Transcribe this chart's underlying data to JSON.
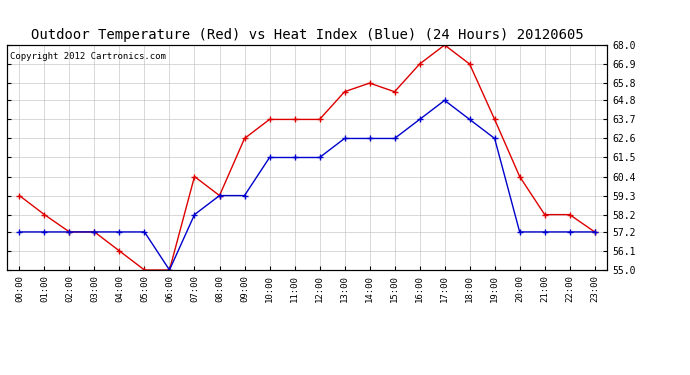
{
  "title": "Outdoor Temperature (Red) vs Heat Index (Blue) (24 Hours) 20120605",
  "copyright": "Copyright 2012 Cartronics.com",
  "x_labels": [
    "00:00",
    "01:00",
    "02:00",
    "03:00",
    "04:00",
    "05:00",
    "06:00",
    "07:00",
    "08:00",
    "09:00",
    "10:00",
    "11:00",
    "12:00",
    "13:00",
    "14:00",
    "15:00",
    "16:00",
    "17:00",
    "18:00",
    "19:00",
    "20:00",
    "21:00",
    "22:00",
    "23:00"
  ],
  "red_temp": [
    59.3,
    58.2,
    57.2,
    57.2,
    56.1,
    55.0,
    55.0,
    60.4,
    59.3,
    62.6,
    63.7,
    63.7,
    63.7,
    65.3,
    65.8,
    65.3,
    66.9,
    68.0,
    66.9,
    63.7,
    60.4,
    58.2,
    58.2,
    57.2
  ],
  "blue_heat": [
    57.2,
    57.2,
    57.2,
    57.2,
    57.2,
    57.2,
    55.0,
    58.2,
    59.3,
    59.3,
    61.5,
    61.5,
    61.5,
    62.6,
    62.6,
    62.6,
    63.7,
    64.8,
    63.7,
    62.6,
    57.2,
    57.2,
    57.2,
    57.2
  ],
  "y_min": 55.0,
  "y_max": 68.0,
  "y_ticks": [
    55.0,
    56.1,
    57.2,
    58.2,
    59.3,
    60.4,
    61.5,
    62.6,
    63.7,
    64.8,
    65.8,
    66.9,
    68.0
  ],
  "red_color": "#DD0000",
  "blue_color": "#0000CC",
  "background_color": "#FFFFFF",
  "grid_color": "#BBBBBB",
  "title_fontsize": 10,
  "copyright_fontsize": 6.5
}
